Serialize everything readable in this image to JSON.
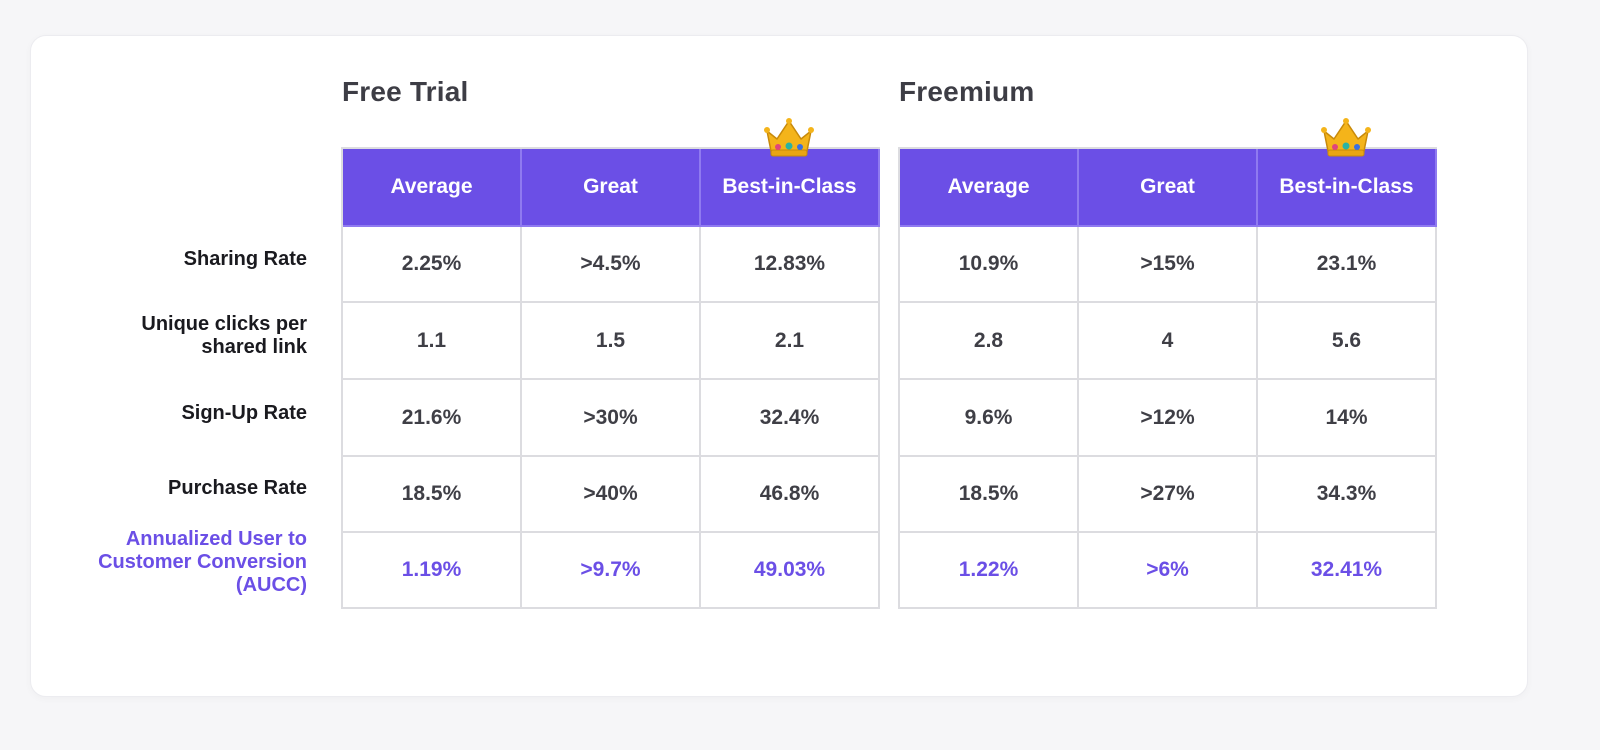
{
  "tables": [
    {
      "title": "Free Trial",
      "headers": [
        "Average",
        "Great",
        "Best-in-Class"
      ],
      "rows": [
        [
          "2.25%",
          ">4.5%",
          "12.83%"
        ],
        [
          "1.1",
          "1.5",
          "2.1"
        ],
        [
          "21.6%",
          ">30%",
          "32.4%"
        ],
        [
          "18.5%",
          ">40%",
          "46.8%"
        ],
        [
          "1.19%",
          ">9.7%",
          "49.03%"
        ]
      ]
    },
    {
      "title": "Freemium",
      "headers": [
        "Average",
        "Great",
        "Best-in-Class"
      ],
      "rows": [
        [
          "10.9%",
          ">15%",
          "23.1%"
        ],
        [
          "2.8",
          "4",
          "5.6"
        ],
        [
          "9.6%",
          ">12%",
          "14%"
        ],
        [
          "18.5%",
          ">27%",
          "34.3%"
        ],
        [
          "1.22%",
          ">6%",
          "32.41%"
        ]
      ]
    }
  ],
  "row_labels": {
    "sharing_rate": "Sharing Rate",
    "unique_clicks_line1": "Unique clicks per",
    "unique_clicks_line2": "shared link",
    "signup_rate": "Sign-Up Rate",
    "purchase_rate": "Purchase Rate",
    "aucc_line1": "Annualized User to",
    "aucc_line2": "Customer Conversion",
    "aucc_line3": "(AUCC)"
  },
  "icons": {
    "best_in_class_badge": "crown-icon"
  },
  "colors": {
    "accent": "#6b4fe6",
    "header_bg": "#6b4fe6",
    "text": "#3f3f46",
    "grid": "#dcdce0"
  }
}
